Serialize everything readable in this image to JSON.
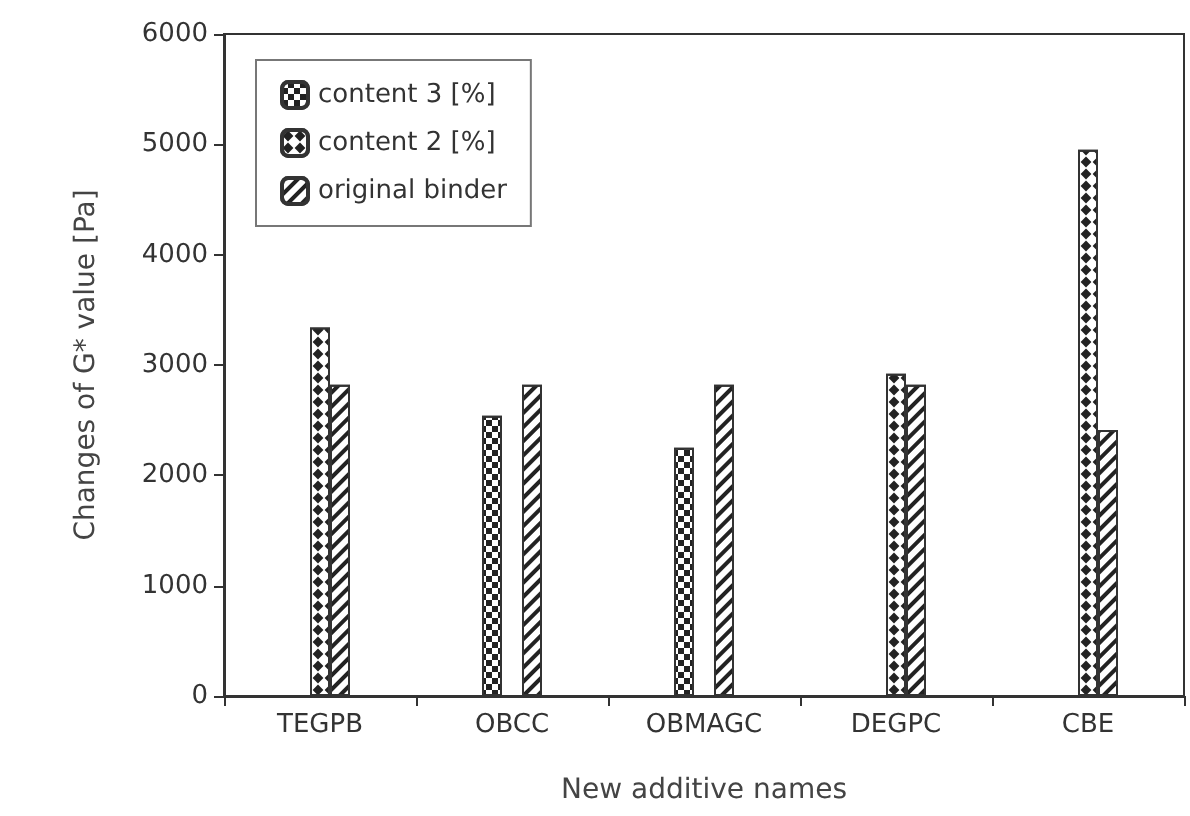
{
  "chart_data": {
    "type": "bar",
    "xlabel": "New additive names",
    "ylabel": "Changes of G* value [Pa]",
    "categories": [
      "TEGPB",
      "OBCC",
      "OBMAGC",
      "DEGPC",
      "CBE"
    ],
    "series": [
      {
        "name": "content 3 [%]",
        "color": "#ffffff",
        "values": [
          null,
          2540,
          2250,
          null,
          null
        ]
      },
      {
        "name": "content 2 [%]",
        "color": "#ffffff",
        "values": [
          3340,
          null,
          null,
          2920,
          4950
        ]
      },
      {
        "name": "original binder",
        "color": "#ffffff",
        "values": [
          2820,
          2820,
          2820,
          2820,
          2410
        ]
      }
    ],
    "ylim": [
      0,
      6000
    ],
    "yticks": [
      0,
      1000,
      2000,
      3000,
      4000,
      5000,
      6000
    ],
    "grid": false,
    "legend": "top left"
  }
}
